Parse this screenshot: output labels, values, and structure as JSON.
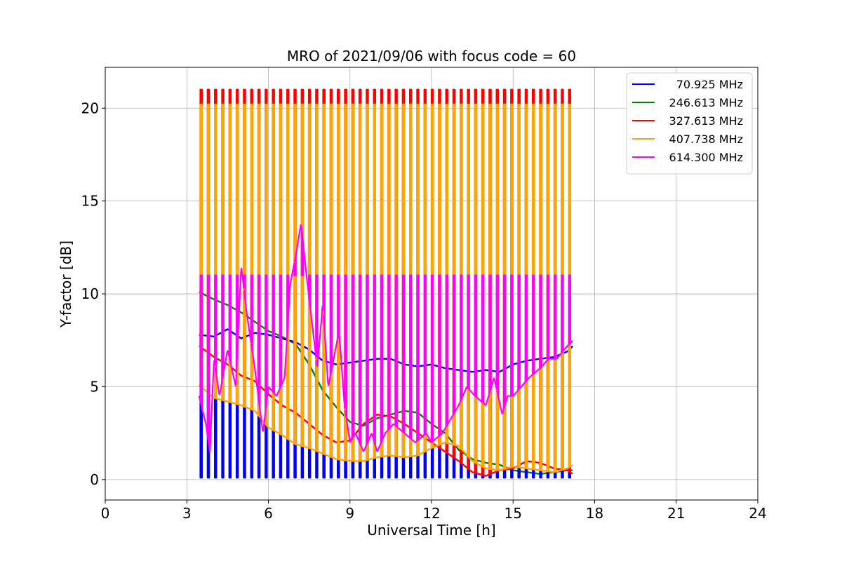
{
  "chart_data": {
    "type": "line",
    "title": "MRO of 2021/09/06 with focus code = 60",
    "xlabel": "Universal Time [h]",
    "ylabel": "Y-factor [dB]",
    "xlim": [
      0,
      24
    ],
    "ylim": [
      -1.1,
      22.2
    ],
    "xticks": [
      0,
      3,
      6,
      9,
      12,
      15,
      18,
      21,
      24
    ],
    "yticks": [
      0,
      5,
      10,
      15,
      20
    ],
    "grid": true,
    "legend_position": "top-right",
    "calibration_pulses": {
      "x_start": 3.5,
      "x_end": 17.05,
      "count": 52,
      "width_h": 0.055,
      "peak_levels": [
        {
          "series": "327.613 MHz",
          "value": 21.0
        },
        {
          "series": "407.738 MHz",
          "value": 20.2
        },
        {
          "series": "614.300 MHz",
          "value": 11.0
        }
      ],
      "low_level": {
        "series": "70.925 MHz",
        "value": 0.1
      }
    },
    "series": [
      {
        "name": "70.925 MHz",
        "color": "#0000ff",
        "x": [
          3.45,
          4.0,
          4.5,
          5.0,
          5.5,
          6.0,
          6.5,
          7.0,
          7.5,
          8.0,
          8.5,
          9.0,
          9.5,
          10.0,
          10.5,
          11.0,
          11.5,
          12.0,
          12.5,
          13.0,
          13.5,
          14.0,
          14.5,
          15.0,
          15.5,
          16.0,
          16.5,
          17.0,
          17.2
        ],
        "y": [
          7.8,
          7.7,
          8.1,
          7.6,
          7.9,
          7.8,
          7.6,
          7.4,
          7.0,
          6.4,
          6.2,
          6.3,
          6.4,
          6.5,
          6.5,
          6.2,
          6.1,
          6.2,
          6.0,
          5.9,
          5.8,
          5.9,
          5.8,
          6.2,
          6.4,
          6.5,
          6.6,
          6.9,
          7.2
        ]
      },
      {
        "name": "246.613 MHz",
        "color": "#008000",
        "x": [
          3.45,
          4.0,
          4.5,
          5.0,
          5.5,
          6.0,
          6.5,
          7.0,
          7.5,
          8.0,
          8.5,
          9.0,
          9.5,
          10.0,
          10.5,
          11.0,
          11.5,
          12.0,
          12.5,
          13.0,
          13.5,
          14.0,
          14.5,
          15.0,
          15.5,
          16.0,
          16.5,
          17.0,
          17.2
        ],
        "y": [
          10.1,
          9.7,
          9.4,
          9.0,
          8.5,
          8.0,
          7.7,
          7.3,
          6.2,
          4.8,
          3.9,
          3.1,
          2.9,
          3.3,
          3.5,
          3.7,
          3.6,
          3.0,
          2.5,
          1.6,
          1.1,
          0.9,
          0.8,
          0.5,
          0.4,
          0.3,
          0.4,
          0.5,
          0.5
        ]
      },
      {
        "name": "327.613 MHz",
        "color": "#ff0000",
        "x": [
          3.45,
          4.0,
          4.5,
          5.0,
          5.5,
          6.0,
          6.5,
          7.0,
          7.5,
          8.0,
          8.5,
          9.0,
          9.5,
          10.0,
          10.5,
          11.0,
          11.5,
          12.0,
          12.5,
          13.0,
          13.5,
          14.0,
          14.5,
          15.0,
          15.5,
          16.0,
          16.5,
          17.0,
          17.2
        ],
        "y": [
          7.2,
          6.6,
          6.2,
          5.6,
          5.3,
          4.6,
          4.0,
          3.6,
          3.0,
          2.4,
          2.0,
          2.1,
          3.0,
          3.5,
          3.4,
          3.0,
          2.5,
          2.0,
          1.5,
          1.0,
          0.4,
          0.2,
          0.5,
          0.6,
          1.0,
          0.9,
          0.6,
          0.5,
          0.3
        ]
      },
      {
        "name": "407.738 MHz",
        "color": "#ffa500",
        "x": [
          3.45,
          4.0,
          4.5,
          5.0,
          5.5,
          6.0,
          6.5,
          7.0,
          7.5,
          8.0,
          8.5,
          9.0,
          9.5,
          10.0,
          10.5,
          11.0,
          11.5,
          12.0,
          12.5,
          13.0,
          13.5,
          14.0,
          14.5,
          15.0,
          15.5,
          16.0,
          16.5,
          17.0,
          17.2
        ],
        "y": [
          5.1,
          4.4,
          4.2,
          4.0,
          3.7,
          2.8,
          2.4,
          1.9,
          1.7,
          1.4,
          1.1,
          1.0,
          1.0,
          1.2,
          1.3,
          1.2,
          1.3,
          1.7,
          2.0,
          1.8,
          1.0,
          0.6,
          0.5,
          0.7,
          0.6,
          0.5,
          0.4,
          0.6,
          0.8
        ]
      },
      {
        "name": "614.300 MHz",
        "color": "#ff00ff",
        "x": [
          3.45,
          3.7,
          3.85,
          4.0,
          4.2,
          4.5,
          4.8,
          5.0,
          5.2,
          5.5,
          5.8,
          6.0,
          6.3,
          6.6,
          6.8,
          7.0,
          7.2,
          7.4,
          7.6,
          7.8,
          8.0,
          8.2,
          8.4,
          8.6,
          8.8,
          9.0,
          9.2,
          9.5,
          9.8,
          10.0,
          10.3,
          10.6,
          11.0,
          11.4,
          11.8,
          12.0,
          12.4,
          12.8,
          13.0,
          13.3,
          13.6,
          14.0,
          14.3,
          14.6,
          14.8,
          15.0,
          15.3,
          15.6,
          16.0,
          16.3,
          16.6,
          17.0,
          17.2
        ],
        "y": [
          4.5,
          3.0,
          1.5,
          6.5,
          4.5,
          7.0,
          5.0,
          11.5,
          9.0,
          6.0,
          2.5,
          5.0,
          4.5,
          5.5,
          10.5,
          12.0,
          13.8,
          11.0,
          8.5,
          6.0,
          9.5,
          5.0,
          6.5,
          8.0,
          4.0,
          2.0,
          2.5,
          1.5,
          2.5,
          1.5,
          2.5,
          3.0,
          2.5,
          2.0,
          2.5,
          2.0,
          2.5,
          3.5,
          4.0,
          5.0,
          4.5,
          4.0,
          5.5,
          3.5,
          4.5,
          4.5,
          5.0,
          5.5,
          6.0,
          6.5,
          6.5,
          7.2,
          7.5
        ]
      }
    ]
  }
}
